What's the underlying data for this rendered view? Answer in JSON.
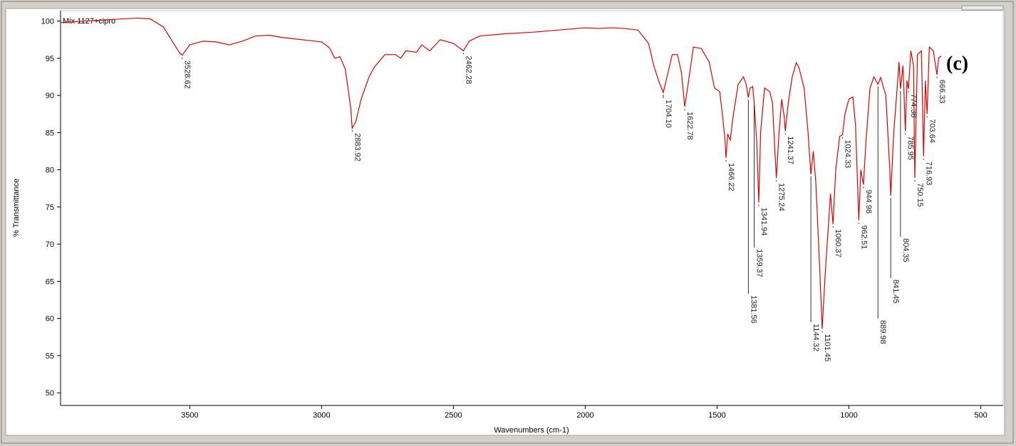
{
  "chart_data": {
    "type": "line",
    "title": "(c)",
    "x_label": "Wavenumbers (cm-1)",
    "y_label": "% Transmittance",
    "xlim": [
      3990,
      415
    ],
    "ylim": [
      48.3,
      101.4
    ],
    "xticks": [
      3500,
      3000,
      2500,
      2000,
      1500,
      1000,
      500
    ],
    "yticks": [
      50,
      55,
      60,
      65,
      70,
      75,
      80,
      85,
      90,
      95,
      100
    ],
    "x": [
      3990,
      3900,
      3800,
      3700,
      3650,
      3600,
      3570,
      3540,
      3528.62,
      3500,
      3450,
      3400,
      3350,
      3300,
      3250,
      3200,
      3150,
      3100,
      3050,
      3000,
      2970,
      2950,
      2930,
      2910,
      2890,
      2883.92,
      2870,
      2850,
      2820,
      2800,
      2760,
      2720,
      2700,
      2680,
      2640,
      2620,
      2590,
      2550,
      2500,
      2462.28,
      2440,
      2400,
      2300,
      2200,
      2100,
      2000,
      1950,
      1900,
      1850,
      1800,
      1760,
      1740,
      1720,
      1704.1,
      1690,
      1670,
      1650,
      1635,
      1622.78,
      1610,
      1590,
      1560,
      1530,
      1510,
      1490,
      1480,
      1470,
      1466.22,
      1460,
      1450,
      1440,
      1420,
      1400,
      1390,
      1381.56,
      1375,
      1365,
      1359.37,
      1350,
      1345,
      1341.94,
      1335,
      1320,
      1300,
      1290,
      1280,
      1275.24,
      1265,
      1255,
      1245,
      1241.37,
      1230,
      1215,
      1200,
      1190,
      1170,
      1155,
      1144.32,
      1135,
      1125,
      1110,
      1101.45,
      1090,
      1075,
      1070,
      1060.37,
      1050,
      1035,
      1024.33,
      1015,
      1000,
      985,
      975,
      962.51,
      955,
      944.98,
      935,
      920,
      905,
      889.98,
      880,
      860,
      845,
      841.45,
      830,
      815,
      810,
      804.35,
      795,
      785.95,
      780,
      774.38,
      765,
      755,
      750.15,
      740,
      725,
      716.93,
      710,
      703.64,
      695,
      680,
      666.33,
      660,
      650
    ],
    "series": [
      {
        "name": "Mix 1127+cipro",
        "color": "#e00000",
        "values": [
          99.8,
          100.0,
          100.2,
          100.4,
          100.3,
          99.2,
          97.5,
          95.8,
          95.4,
          96.8,
          97.3,
          97.2,
          96.8,
          97.3,
          98.0,
          98.1,
          97.8,
          97.6,
          97.4,
          97.2,
          96.4,
          95.0,
          95.2,
          93.5,
          88.5,
          85.6,
          86.5,
          89.5,
          92.5,
          93.8,
          95.5,
          95.5,
          95.0,
          96.0,
          95.8,
          96.8,
          96.0,
          97.5,
          97.0,
          96.0,
          97.3,
          98.0,
          98.3,
          98.5,
          98.8,
          99.1,
          99.0,
          99.1,
          99.0,
          98.8,
          97.0,
          94.0,
          91.8,
          90.4,
          92.5,
          95.5,
          95.5,
          93.0,
          88.5,
          91.5,
          96.5,
          96.3,
          94.5,
          91.0,
          90.5,
          87.5,
          84.0,
          81.6,
          84.8,
          84.0,
          87.0,
          91.5,
          92.5,
          91.5,
          89.7,
          91.0,
          91.2,
          89.0,
          84.0,
          79.0,
          75.6,
          85.0,
          91.0,
          90.5,
          89.0,
          82.0,
          78.9,
          85.0,
          89.5,
          87.0,
          85.2,
          89.0,
          92.5,
          94.4,
          93.8,
          91.0,
          85.0,
          79.4,
          82.5,
          78.0,
          66.0,
          58.6,
          66.0,
          74.0,
          76.8,
          72.7,
          80.0,
          84.5,
          84.7,
          87.5,
          89.5,
          89.8,
          86.0,
          73.2,
          80.0,
          78.0,
          84.0,
          91.0,
          92.5,
          91.5,
          92.4,
          90.0,
          80.0,
          76.5,
          85.0,
          92.0,
          94.5,
          90.9,
          94.0,
          85.2,
          92.0,
          90.9,
          96.0,
          94.0,
          78.9,
          95.5,
          96.0,
          81.8,
          92.0,
          87.5,
          96.5,
          96.0,
          92.8,
          95.0,
          95.3
        ]
      }
    ],
    "annotations": [
      {
        "x": 3528.62,
        "y": 95.4,
        "label": "3528.62"
      },
      {
        "x": 2883.92,
        "y": 85.6,
        "label": "2883.92"
      },
      {
        "x": 2462.28,
        "y": 96.0,
        "label": "2462.28"
      },
      {
        "x": 1704.1,
        "y": 90.4,
        "label": "1704.10"
      },
      {
        "x": 1622.78,
        "y": 88.5,
        "label": "1622.78"
      },
      {
        "x": 1466.22,
        "y": 81.6,
        "label": "1466.22"
      },
      {
        "x": 1381.56,
        "y": 89.7,
        "label": "1381.56"
      },
      {
        "x": 1359.37,
        "y": 89.0,
        "label": "1359.37"
      },
      {
        "x": 1341.94,
        "y": 75.6,
        "label": "1341.94"
      },
      {
        "x": 1275.24,
        "y": 78.9,
        "label": "1275.24"
      },
      {
        "x": 1241.37,
        "y": 85.2,
        "label": "1241.37"
      },
      {
        "x": 1144.32,
        "y": 79.4,
        "label": "1144.32"
      },
      {
        "x": 1101.45,
        "y": 58.6,
        "label": "1101.45"
      },
      {
        "x": 1060.37,
        "y": 72.7,
        "label": "1060.37"
      },
      {
        "x": 1024.33,
        "y": 84.7,
        "label": "1024.33"
      },
      {
        "x": 962.51,
        "y": 73.2,
        "label": "962.51"
      },
      {
        "x": 944.98,
        "y": 78.0,
        "label": "944.98"
      },
      {
        "x": 889.98,
        "y": 91.5,
        "label": "889.98"
      },
      {
        "x": 841.45,
        "y": 76.5,
        "label": "841.45"
      },
      {
        "x": 804.35,
        "y": 90.9,
        "label": "804.35"
      },
      {
        "x": 785.95,
        "y": 85.2,
        "label": "785.95"
      },
      {
        "x": 774.38,
        "y": 90.9,
        "label": "774.38"
      },
      {
        "x": 750.15,
        "y": 78.9,
        "label": "750.15"
      },
      {
        "x": 716.93,
        "y": 81.8,
        "label": "716.93"
      },
      {
        "x": 703.64,
        "y": 87.5,
        "label": "703.64"
      },
      {
        "x": 666.33,
        "y": 92.8,
        "label": "666.33"
      }
    ]
  }
}
